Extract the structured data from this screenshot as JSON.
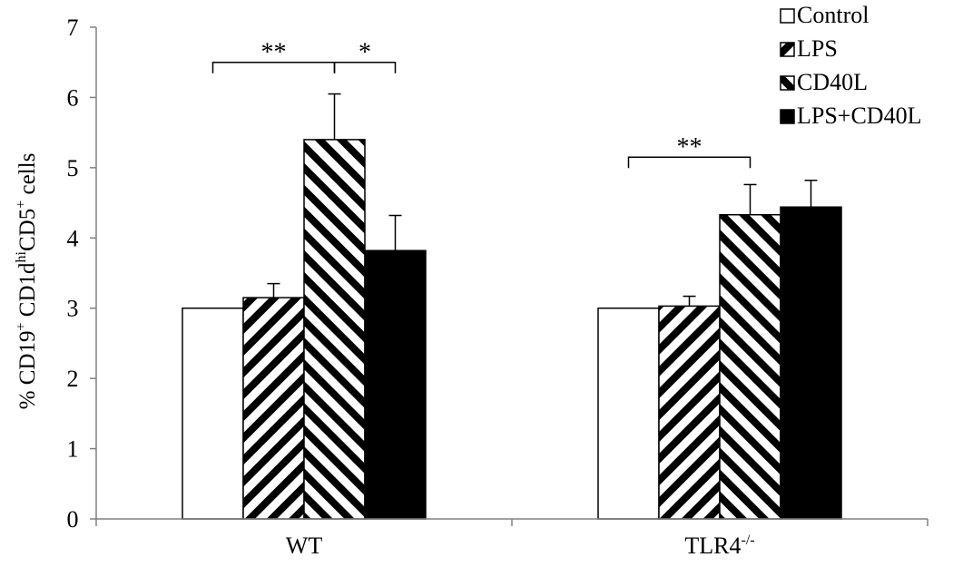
{
  "chart_data": {
    "type": "bar",
    "title": "",
    "xlabel": "",
    "ylabel": {
      "prefix": "% CD19",
      "sup1": "+",
      "mid1": " CD1d",
      "sup2": "hi",
      "mid2": "CD5",
      "sup3": "+",
      "suffix": " cells"
    },
    "ylim": [
      0,
      7
    ],
    "yticks": [
      0,
      1,
      2,
      3,
      4,
      5,
      6,
      7
    ],
    "categories": [
      {
        "base": "WT",
        "sup": ""
      },
      {
        "base": "TLR4",
        "sup": "-/-"
      }
    ],
    "series": [
      {
        "name": "Control",
        "pattern": "white",
        "values": [
          3.0,
          3.0
        ],
        "errors": [
          0,
          0
        ]
      },
      {
        "name": "LPS",
        "pattern": "hatch-fwd",
        "values": [
          3.15,
          3.03
        ],
        "errors": [
          0.2,
          0.14
        ]
      },
      {
        "name": "CD40L",
        "pattern": "hatch-back",
        "values": [
          5.4,
          4.33
        ],
        "errors": [
          0.65,
          0.43
        ]
      },
      {
        "name": "LPS+CD40L",
        "pattern": "black",
        "values": [
          3.82,
          4.44
        ],
        "errors": [
          0.5,
          0.38
        ]
      }
    ],
    "legend": {
      "position": "top-right"
    },
    "grid": false,
    "annotations": [
      {
        "category": 0,
        "from_series": 0,
        "to_series": 2,
        "label": "**",
        "y": 6.5
      },
      {
        "category": 0,
        "from_series": 2,
        "to_series": 3,
        "label": "*",
        "y": 6.5
      },
      {
        "category": 1,
        "from_series": 0,
        "to_series": 2,
        "label": "**",
        "y": 5.15
      }
    ]
  }
}
